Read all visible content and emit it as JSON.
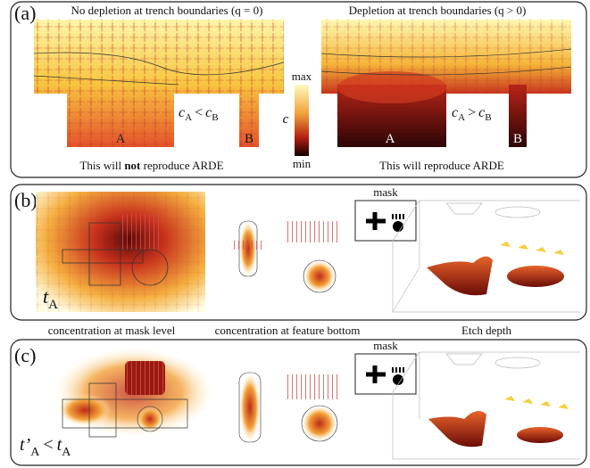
{
  "panel_a": {
    "label": "(a)",
    "left": {
      "title": "No depletion at trench boundaries (q = 0)",
      "trench_labels": [
        "A",
        "B"
      ],
      "relation": {
        "left": "c",
        "left_sub": "A",
        "op": "<",
        "right": "c",
        "right_sub": "B"
      },
      "caption": [
        "This will ",
        "not",
        " reproduce ARDE"
      ]
    },
    "right": {
      "title": "Depletion at trench boundaries (q > 0)",
      "trench_labels": [
        "A",
        "B"
      ],
      "relation": {
        "left": "c",
        "left_sub": "A",
        "op": ">",
        "right": "c",
        "right_sub": "B"
      },
      "caption": "This will reproduce ARDE"
    },
    "colorbar": {
      "max": "max",
      "symbol": "c",
      "min": "min"
    }
  },
  "panel_b": {
    "label": "(b)",
    "mask": "mask",
    "time": {
      "symbol": "t",
      "sub": "A"
    }
  },
  "column_labels": [
    "concentration at mask level",
    "concentration at feature bottom",
    "Etch depth"
  ],
  "panel_c": {
    "label": "(c)",
    "mask": "mask",
    "time": {
      "symbol": "t’",
      "sub": "A",
      "op": "<",
      "right": "t",
      "right_sub": "A"
    }
  }
}
